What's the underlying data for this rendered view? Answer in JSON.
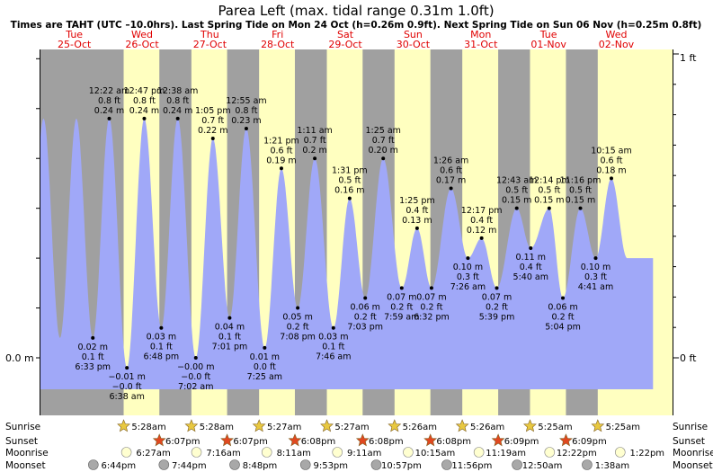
{
  "title": "Parea Left (max. tidal range 0.31m 1.0ft)",
  "subtitle": "Times are TAHT (UTC –10.0hrs). Last Spring Tide on Mon 24 Oct (h=0.26m 0.9ft). Next Spring Tide on Sun 06 Nov (h=0.25m 0.8ft)",
  "colors": {
    "night": "#a0a0a0",
    "day": "#ffffc0",
    "water": "#a0a8f8",
    "date": "#e00000",
    "sun_fill": "#e8c840",
    "sunset_fill": "#e04820",
    "moonrise_fill": "#ffffd0",
    "moonset_fill": "#a8a8a8"
  },
  "days": [
    {
      "dow": "Tue",
      "date": "25-Oct"
    },
    {
      "dow": "Wed",
      "date": "26-Oct"
    },
    {
      "dow": "Thu",
      "date": "27-Oct"
    },
    {
      "dow": "Fri",
      "date": "28-Oct"
    },
    {
      "dow": "Sat",
      "date": "29-Oct"
    },
    {
      "dow": "Sun",
      "date": "30-Oct"
    },
    {
      "dow": "Mon",
      "date": "31-Oct"
    },
    {
      "dow": "Tue",
      "date": "01-Nov"
    },
    {
      "dow": "Wed",
      "date": "02-Nov"
    }
  ],
  "axis": {
    "left_labels": {
      "top": "",
      "zero": "0.0 m"
    },
    "right_labels": {
      "top": "1 ft",
      "zero": "0 ft"
    }
  },
  "chart_data": {
    "type": "area",
    "title": "Parea Left (max. tidal range 0.31m 1.0ft)",
    "x_unit": "hours from 25-Oct 00:00 (TAHT)",
    "ylabel": "",
    "ylim_m": [
      -0.035,
      0.31
    ],
    "tides": [
      {
        "t": 18.55,
        "h": 0.02,
        "labels": [
          "0.02 m",
          "0.1 ft",
          "6:33 pm"
        ],
        "type": "low"
      },
      {
        "t": 24.37,
        "h": 0.24,
        "labels": [
          "12:22 am",
          "0.8 ft",
          "0.24 m"
        ],
        "type": "high"
      },
      {
        "t": 30.63,
        "h": -0.01,
        "labels": [
          "−0.01 m",
          "−0.0 ft",
          "6:38 am"
        ],
        "type": "low"
      },
      {
        "t": 36.78,
        "h": 0.24,
        "labels": [
          "12:47 pm",
          "0.8 ft",
          "0.24 m"
        ],
        "type": "high"
      },
      {
        "t": 42.8,
        "h": 0.03,
        "labels": [
          "0.03 m",
          "0.1 ft",
          "6:48 pm"
        ],
        "type": "low"
      },
      {
        "t": 48.63,
        "h": 0.24,
        "labels": [
          "12:38 am",
          "0.8 ft",
          "0.24 m"
        ],
        "type": "high"
      },
      {
        "t": 55.03,
        "h": 0.0,
        "labels": [
          "−0.00 m",
          "−0.0 ft",
          "7:02 am"
        ],
        "type": "low"
      },
      {
        "t": 61.08,
        "h": 0.22,
        "labels": [
          "1:05 pm",
          "0.7 ft",
          "0.22 m"
        ],
        "type": "high"
      },
      {
        "t": 67.02,
        "h": 0.04,
        "labels": [
          "0.04 m",
          "0.1 ft",
          "7:01 pm"
        ],
        "type": "low"
      },
      {
        "t": 72.92,
        "h": 0.23,
        "labels": [
          "12:55 am",
          "0.8 ft",
          "0.23 m"
        ],
        "type": "high"
      },
      {
        "t": 79.42,
        "h": 0.01,
        "labels": [
          "0.01 m",
          "0.0 ft",
          "7:25 am"
        ],
        "type": "low"
      },
      {
        "t": 85.35,
        "h": 0.19,
        "labels": [
          "1:21 pm",
          "0.6 ft",
          "0.19 m"
        ],
        "type": "high"
      },
      {
        "t": 91.13,
        "h": 0.05,
        "labels": [
          "0.05 m",
          "0.2 ft",
          "7:08 pm"
        ],
        "type": "low"
      },
      {
        "t": 97.18,
        "h": 0.2,
        "labels": [
          "1:11 am",
          "0.7 ft",
          "0.2 m"
        ],
        "type": "high"
      },
      {
        "t": 103.77,
        "h": 0.03,
        "labels": [
          "0.03 m",
          "0.1 ft",
          "7:46 am"
        ],
        "type": "low"
      },
      {
        "t": 109.52,
        "h": 0.16,
        "labels": [
          "1:31 pm",
          "0.5 ft",
          "0.16 m"
        ],
        "type": "high"
      },
      {
        "t": 115.05,
        "h": 0.06,
        "labels": [
          "0.06 m",
          "0.2 ft",
          "7:03 pm"
        ],
        "type": "low"
      },
      {
        "t": 121.42,
        "h": 0.2,
        "labels": [
          "1:25 am",
          "0.7 ft",
          "0.20 m"
        ],
        "type": "high"
      },
      {
        "t": 127.98,
        "h": 0.07,
        "labels": [
          "0.07 m",
          "0.2 ft",
          "7:59 am"
        ],
        "type": "low"
      },
      {
        "t": 133.42,
        "h": 0.13,
        "labels": [
          "1:25 pm",
          "0.4 ft",
          "0.13 m"
        ],
        "type": "high"
      },
      {
        "t": 138.53,
        "h": 0.07,
        "labels": [
          "0.07 m",
          "0.2 ft",
          "6:32 pm"
        ],
        "type": "low"
      },
      {
        "t": 145.43,
        "h": 0.17,
        "labels": [
          "1:26 am",
          "0.6 ft",
          "0.17 m"
        ],
        "type": "high"
      },
      {
        "t": 151.43,
        "h": 0.1,
        "labels": [
          "0.10 m",
          "0.3 ft",
          "7:26 am"
        ],
        "type": "low"
      },
      {
        "t": 156.28,
        "h": 0.12,
        "labels": [
          "12:17 pm",
          "0.4 ft",
          "0.12 m"
        ],
        "type": "high"
      },
      {
        "t": 161.65,
        "h": 0.07,
        "labels": [
          "0.07 m",
          "0.2 ft",
          "5:39 pm"
        ],
        "type": "low"
      },
      {
        "t": 168.72,
        "h": 0.15,
        "labels": [
          "12:43 am",
          "0.5 ft",
          "0.15 m"
        ],
        "type": "high"
      },
      {
        "t": 173.67,
        "h": 0.11,
        "labels": [
          "0.11 m",
          "0.4 ft",
          "5:40 am"
        ],
        "type": "low"
      },
      {
        "t": 180.23,
        "h": 0.15,
        "labels": [
          "12:14 pm",
          "0.5 ft",
          "0.15 m"
        ],
        "type": "high"
      },
      {
        "t": 185.07,
        "h": 0.06,
        "labels": [
          "0.06 m",
          "0.2 ft",
          "5:04 pm"
        ],
        "type": "low"
      },
      {
        "t": 191.27,
        "h": 0.15,
        "labels": [
          "11:16 pm",
          "0.5 ft",
          "0.15 m"
        ],
        "type": "high"
      },
      {
        "t": 196.68,
        "h": 0.1,
        "labels": [
          "0.10 m",
          "0.3 ft",
          "4:41 am"
        ],
        "type": "low"
      },
      {
        "t": 202.25,
        "h": 0.18,
        "labels": [
          "10:15 am",
          "0.6 ft",
          "0.18 m"
        ],
        "type": "high"
      }
    ],
    "sun": [
      {
        "rise": 29.47,
        "rise_label": "5:28am",
        "set": 42.12,
        "set_label": "6:07pm"
      },
      {
        "rise": 53.47,
        "rise_label": "5:28am",
        "set": 66.12,
        "set_label": "6:07pm"
      },
      {
        "rise": 77.45,
        "rise_label": "5:27am",
        "set": 90.13,
        "set_label": "6:08pm"
      },
      {
        "rise": 101.45,
        "rise_label": "5:27am",
        "set": 114.13,
        "set_label": "6:08pm"
      },
      {
        "rise": 125.43,
        "rise_label": "5:26am",
        "set": 138.13,
        "set_label": "6:08pm"
      },
      {
        "rise": 149.43,
        "rise_label": "5:26am",
        "set": 162.15,
        "set_label": "6:09pm"
      },
      {
        "rise": 173.42,
        "rise_label": "5:25am",
        "set": 186.15,
        "set_label": "6:09pm"
      },
      {
        "rise": 197.42,
        "rise_label": "5:25am",
        "set": null,
        "set_label": ""
      }
    ],
    "moonrise": [
      {
        "t": 30.45,
        "label": "6:27am"
      },
      {
        "t": 55.27,
        "label": "7:16am"
      },
      {
        "t": 80.18,
        "label": "8:11am"
      },
      {
        "t": 105.18,
        "label": "9:11am"
      },
      {
        "t": 130.25,
        "label": "10:15am"
      },
      {
        "t": 155.32,
        "label": "11:19am"
      },
      {
        "t": 180.37,
        "label": "12:22pm"
      },
      {
        "t": 205.37,
        "label": "1:22pm"
      }
    ],
    "moonset": [
      {
        "t": 18.73,
        "label": "6:44pm"
      },
      {
        "t": 43.73,
        "label": "7:44pm"
      },
      {
        "t": 68.8,
        "label": "8:48pm"
      },
      {
        "t": 93.88,
        "label": "9:53pm"
      },
      {
        "t": 118.95,
        "label": "10:57pm"
      },
      {
        "t": 143.93,
        "label": "11:56pm"
      },
      {
        "t": 168.83,
        "label": "12:50am"
      },
      {
        "t": 193.63,
        "label": "1:38am"
      }
    ]
  },
  "bottom_labels": {
    "sunrise": "Sunrise",
    "sunset": "Sunset",
    "moonrise": "Moonrise",
    "moonset": "Moonset"
  }
}
